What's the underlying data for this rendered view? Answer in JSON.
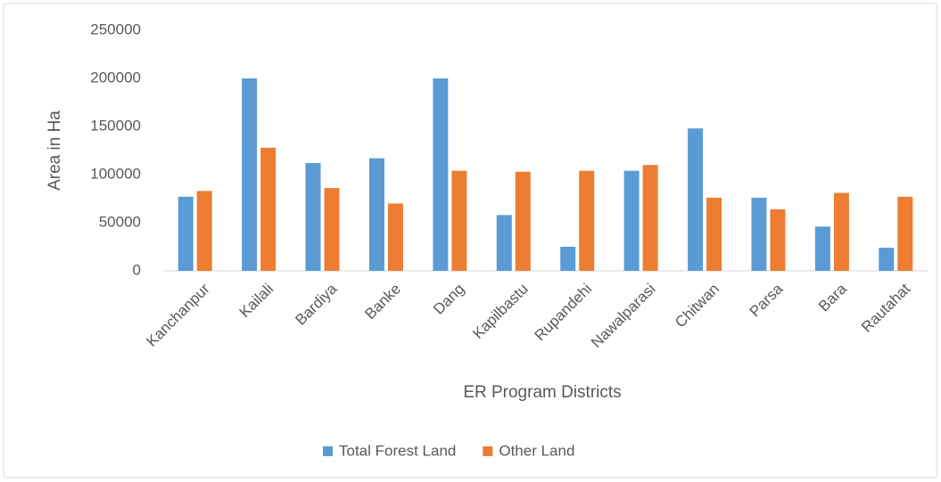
{
  "chart_data": {
    "type": "bar",
    "x_label": "ER Program Districts",
    "y_label": "Area in Ha",
    "categories": [
      "Kanchanpur",
      "Kailali",
      "Bardiya",
      "Banke",
      "Dang",
      "Kapilbastu",
      "Rupandehi",
      "Nawalparasi",
      "Chitwan",
      "Parsa",
      "Bara",
      "Rautahat"
    ],
    "series": [
      {
        "name": "Total Forest Land",
        "color": "#5b9bd5",
        "values": [
          77000,
          200000,
          112000,
          117000,
          200000,
          58000,
          25000,
          104000,
          148000,
          76000,
          46000,
          24000
        ]
      },
      {
        "name": "Other Land",
        "color": "#ed7d31",
        "values": [
          83000,
          128000,
          86000,
          70000,
          104000,
          103000,
          104000,
          110000,
          76000,
          64000,
          81000,
          77000
        ]
      }
    ],
    "ylim": [
      0,
      250000
    ],
    "yticks": [
      0,
      50000,
      100000,
      150000,
      200000,
      250000
    ],
    "grid": false,
    "legend": "bottom"
  }
}
